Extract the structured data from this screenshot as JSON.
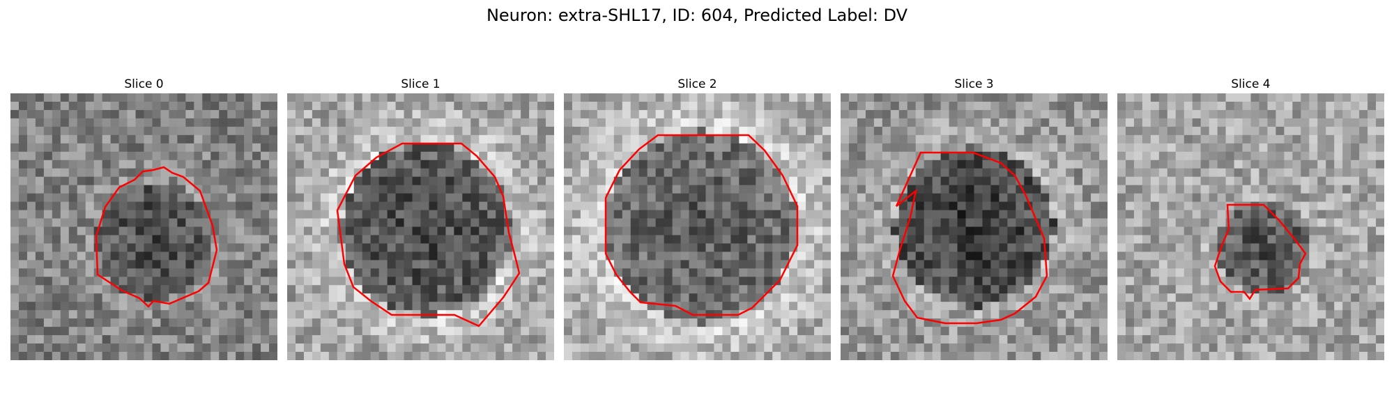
{
  "figure": {
    "title": "Neuron: extra-SHL17, ID: 604, Predicted Label: DV"
  },
  "panels": [
    {
      "title": "Slice 0",
      "seed": 11,
      "base": 130,
      "dark": 55,
      "rim": 18
    },
    {
      "title": "Slice 1",
      "seed": 23,
      "base": 165,
      "dark": 95,
      "rim": 45
    },
    {
      "title": "Slice 2",
      "seed": 37,
      "base": 170,
      "dark": 80,
      "rim": 40
    },
    {
      "title": "Slice 3",
      "seed": 49,
      "base": 150,
      "dark": 95,
      "rim": 25
    },
    {
      "title": "Slice 4",
      "seed": 61,
      "base": 165,
      "dark": 85,
      "rim": 15
    }
  ],
  "contour_color": "#ff0000"
}
